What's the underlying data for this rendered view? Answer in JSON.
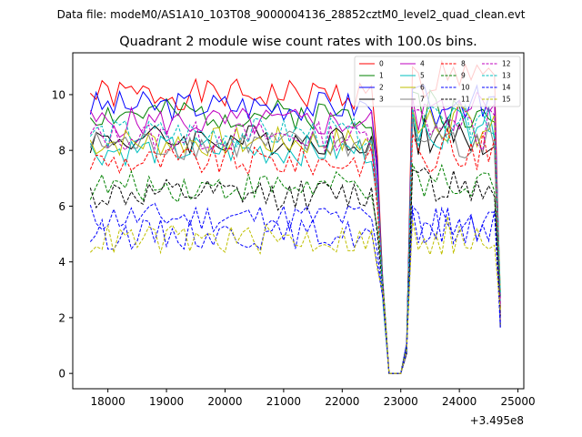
{
  "suptitle": "Data file: modeM0/AS1A10_103T08_9000004136_28852cztM0_level2_quad_clean.evt",
  "chart_data": {
    "type": "line",
    "title": "Quadrant 2 module wise count rates with 100.0s bins.",
    "xlabel": "",
    "ylabel": "",
    "x_offset_label": "+3.495e8",
    "x_start": 17700,
    "x_step": 100,
    "xlim": [
      17400,
      25100
    ],
    "ylim": [
      -0.55,
      11.5
    ],
    "xticks": [
      18000,
      19000,
      20000,
      21000,
      22000,
      23000,
      24000,
      25000
    ],
    "xtick_labels": [
      "18000",
      "19000",
      "20000",
      "21000",
      "22000",
      "23000",
      "24000",
      "25000"
    ],
    "yticks": [
      0,
      2,
      4,
      6,
      8,
      10
    ],
    "ytick_labels": [
      "0",
      "2",
      "4",
      "6",
      "8",
      "10"
    ],
    "grid": false,
    "legend_position": "top-right",
    "series": [
      {
        "name": "0",
        "color": "#ff0000",
        "dash": "solid",
        "level": 10.0,
        "post": 10.4,
        "seed": 1
      },
      {
        "name": "1",
        "color": "#008000",
        "dash": "solid",
        "level": 9.3,
        "post": 9.5,
        "seed": 2
      },
      {
        "name": "2",
        "color": "#0000ff",
        "dash": "solid",
        "level": 9.6,
        "post": 9.6,
        "seed": 3
      },
      {
        "name": "3",
        "color": "#000000",
        "dash": "solid",
        "level": 8.4,
        "post": 8.6,
        "seed": 4
      },
      {
        "name": "4",
        "color": "#bf00bf",
        "dash": "solid",
        "level": 9.0,
        "post": 9.3,
        "seed": 5
      },
      {
        "name": "5",
        "color": "#00bfbf",
        "dash": "solid",
        "level": 8.0,
        "post": 8.8,
        "seed": 6
      },
      {
        "name": "6",
        "color": "#bfbf00",
        "dash": "solid",
        "level": 8.3,
        "post": 8.9,
        "seed": 7
      },
      {
        "name": "7",
        "color": "#808080",
        "dash": "solid",
        "level": 8.2,
        "post": 8.5,
        "seed": 8
      },
      {
        "name": "8",
        "color": "#ff0000",
        "dash": "dashed",
        "level": 7.6,
        "post": 8.0,
        "seed": 9
      },
      {
        "name": "9",
        "color": "#008000",
        "dash": "dashed",
        "level": 6.7,
        "post": 6.9,
        "seed": 10
      },
      {
        "name": "10",
        "color": "#0000ff",
        "dash": "dashed",
        "level": 5.6,
        "post": 5.4,
        "seed": 11
      },
      {
        "name": "11",
        "color": "#000000",
        "dash": "dashed",
        "level": 6.4,
        "post": 6.7,
        "seed": 12
      },
      {
        "name": "12",
        "color": "#bf00bf",
        "dash": "dashed",
        "level": 8.5,
        "post": 8.8,
        "seed": 13
      },
      {
        "name": "13",
        "color": "#00bfbf",
        "dash": "dashed",
        "level": 8.6,
        "post": 8.9,
        "seed": 14
      },
      {
        "name": "14",
        "color": "#0000ff",
        "dash": "dashed",
        "level": 5.0,
        "post": 5.3,
        "seed": 15
      },
      {
        "name": "15",
        "color": "#bfbf00",
        "dash": "dashed",
        "level": 4.8,
        "post": 4.9,
        "seed": 16
      }
    ]
  }
}
